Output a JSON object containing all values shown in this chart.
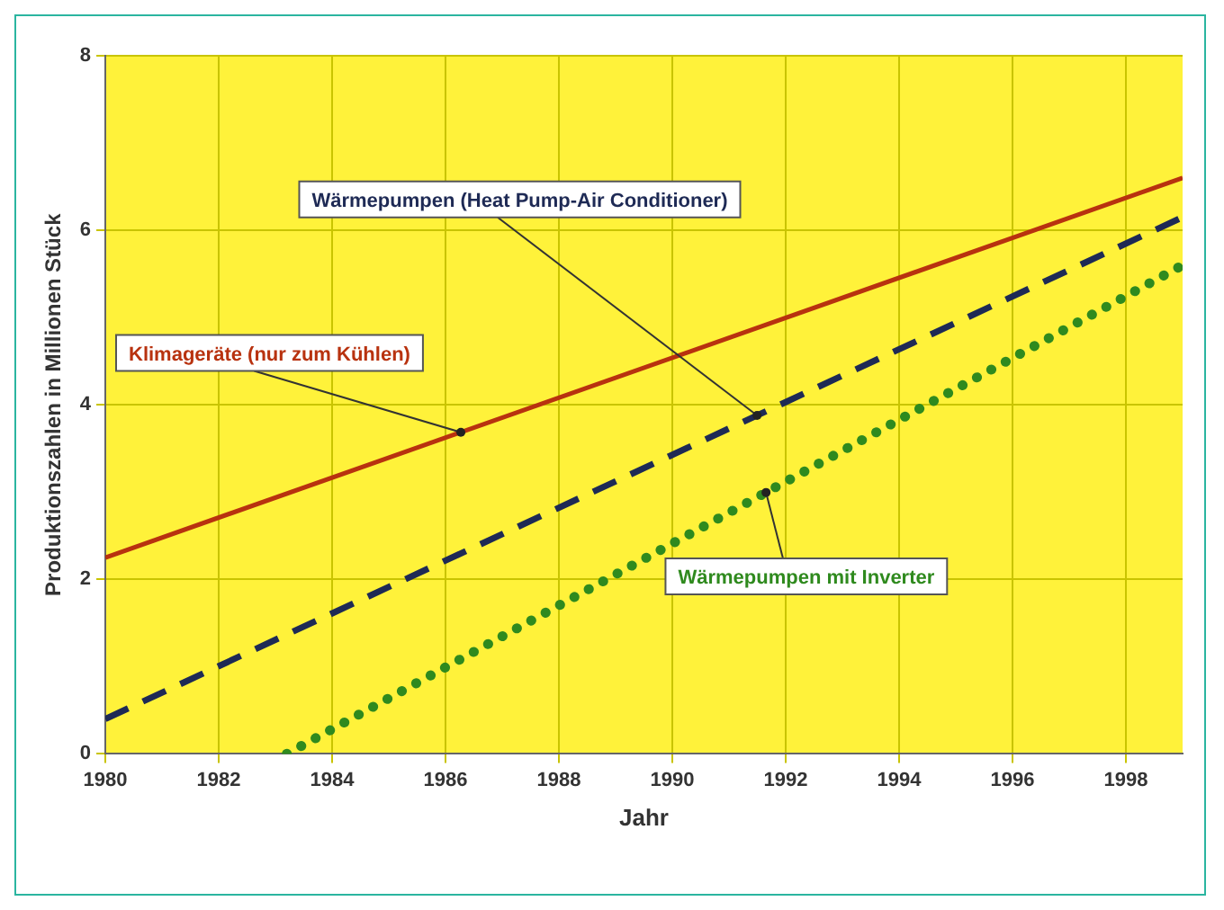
{
  "chart_data": {
    "type": "line",
    "xlabel": "Jahr",
    "ylabel": "Produktionszahlen in Millionen Stück",
    "xlim": [
      1980,
      1999
    ],
    "xticks": [
      1980,
      1982,
      1984,
      1986,
      1988,
      1990,
      1992,
      1994,
      1996,
      1998
    ],
    "ylim": [
      0,
      8
    ],
    "yticks": [
      0,
      2,
      4,
      6,
      8
    ],
    "grid": true,
    "legend": false,
    "marker": "none",
    "series": [
      {
        "name": "Klimageräte (nur zum Kühlen)",
        "color": "#b8320f",
        "line_style": "solid",
        "x": [
          1980,
          1999
        ],
        "values": [
          2.25,
          6.6
        ]
      },
      {
        "name": "Wärmepumpen (Heat Pump-Air Conditioner)",
        "color": "#1e2a55",
        "line_style": "dashed",
        "x": [
          1980,
          1999
        ],
        "values": [
          0.4,
          6.15
        ]
      },
      {
        "name": "Wärmepumpen mit Inverter",
        "color": "#2f8a1e",
        "line_style": "dotted",
        "x": [
          1983.2,
          1999
        ],
        "values": [
          0,
          5.6
        ]
      }
    ]
  }
}
